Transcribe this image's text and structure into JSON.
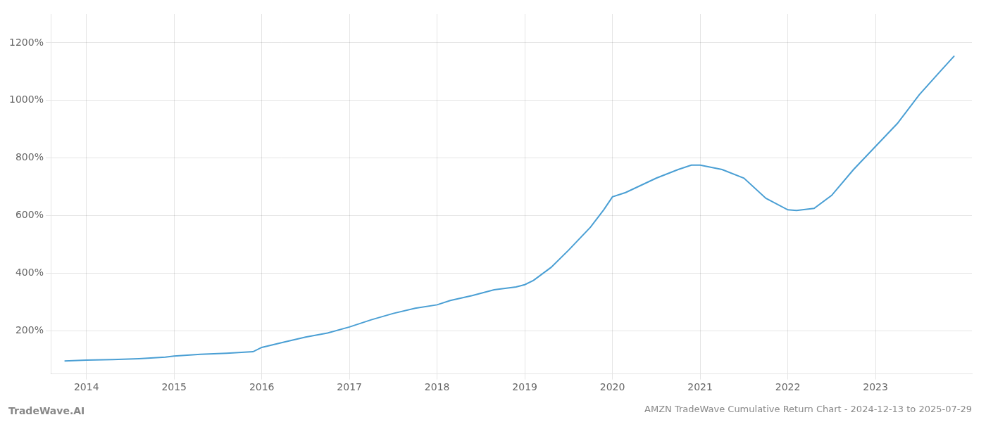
{
  "chart_data": {
    "type": "line",
    "title": "AMZN TradeWave Cumulative Return Chart - 2024-12-13 to 2025-07-29",
    "annotations": [
      "TradeWave.AI"
    ],
    "x": [
      2013.75,
      2014.0,
      2014.3,
      2014.6,
      2014.9,
      2015.0,
      2015.3,
      2015.6,
      2015.9,
      2016.0,
      2016.25,
      2016.5,
      2016.75,
      2017.0,
      2017.25,
      2017.5,
      2017.75,
      2018.0,
      2018.15,
      2018.4,
      2018.65,
      2018.9,
      2019.0,
      2019.1,
      2019.3,
      2019.5,
      2019.75,
      2019.9,
      2020.0,
      2020.15,
      2020.5,
      2020.75,
      2020.9,
      2021.0,
      2021.25,
      2021.5,
      2021.75,
      2022.0,
      2022.1,
      2022.3,
      2022.5,
      2022.75,
      2023.0,
      2023.25,
      2023.5,
      2023.75,
      2023.9
    ],
    "values": [
      95,
      98,
      100,
      103,
      108,
      112,
      118,
      122,
      127,
      142,
      160,
      178,
      192,
      213,
      238,
      260,
      278,
      290,
      305,
      322,
      342,
      352,
      360,
      375,
      420,
      480,
      560,
      620,
      665,
      680,
      730,
      760,
      775,
      775,
      760,
      730,
      660,
      620,
      618,
      625,
      670,
      760,
      840,
      920,
      1020,
      1105,
      1155
    ],
    "color": "#4a9fd4",
    "xlim": [
      2013.6,
      2024.1
    ],
    "ylim": [
      50,
      1300
    ],
    "xticks": [
      2014,
      2015,
      2016,
      2017,
      2018,
      2019,
      2020,
      2021,
      2022,
      2023
    ],
    "yticks": [
      {
        "value": 200,
        "label": "200%"
      },
      {
        "value": 400,
        "label": "400%"
      },
      {
        "value": 600,
        "label": "600%"
      },
      {
        "value": 800,
        "label": "800%"
      },
      {
        "value": 1000,
        "label": "1000%"
      },
      {
        "value": 1200,
        "label": "1200%"
      }
    ],
    "grid": true
  }
}
